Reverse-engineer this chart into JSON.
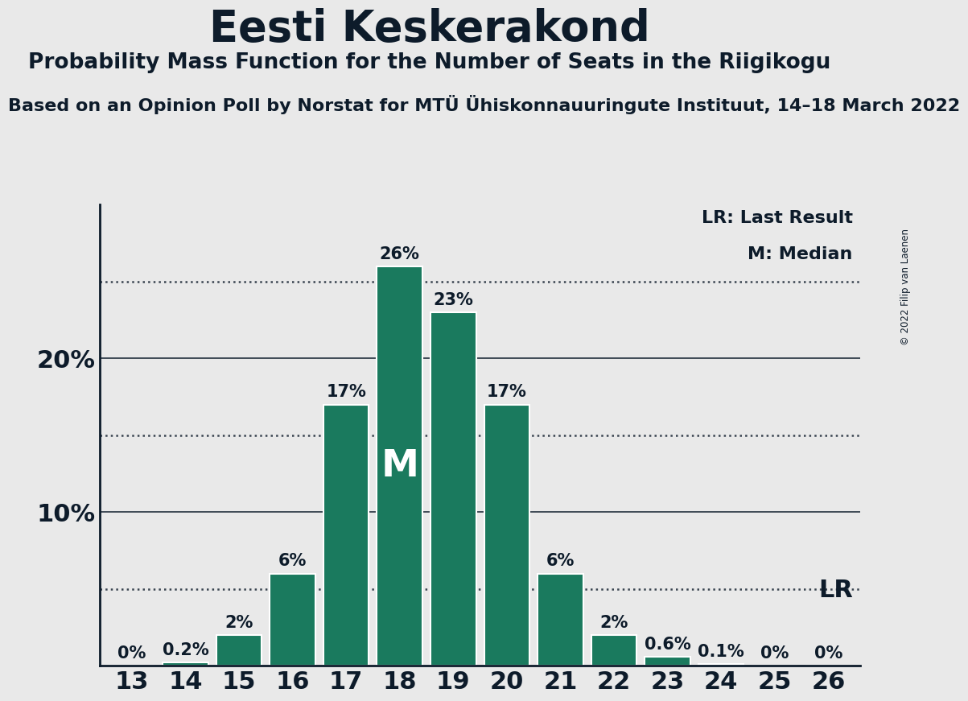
{
  "title": "Eesti Keskerakond",
  "subtitle": "Probability Mass Function for the Number of Seats in the Riigikogu",
  "subsubtitle": "Based on an Opinion Poll by Norstat for MTÜ Ühiskonnauuringute Instituut, 14–18 March 2022",
  "copyright": "© 2022 Filip van Laenen",
  "seats": [
    13,
    14,
    15,
    16,
    17,
    18,
    19,
    20,
    21,
    22,
    23,
    24,
    25,
    26
  ],
  "probabilities": [
    0.0,
    0.2,
    2.0,
    6.0,
    17.0,
    26.0,
    23.0,
    17.0,
    6.0,
    2.0,
    0.6,
    0.1,
    0.0,
    0.0
  ],
  "bar_color": "#1a7a5e",
  "background_color": "#e9e9e9",
  "median_seat": 18,
  "lr_seat": 26,
  "lr_label": "LR",
  "median_label": "M",
  "legend_lr": "LR: Last Result",
  "legend_m": "M: Median",
  "yticks": [
    10,
    20
  ],
  "dotted_lines": [
    5,
    15,
    25
  ],
  "ylim": [
    0,
    30
  ],
  "bar_label_fontsize": 15,
  "title_fontsize": 38,
  "subtitle_fontsize": 19,
  "subsubtitle_fontsize": 16,
  "ytick_fontsize": 22,
  "xtick_fontsize": 22,
  "legend_fontsize": 16,
  "lr_fontsize": 22,
  "text_color": "#0d1b2a",
  "line_color": "#0d1b2a"
}
